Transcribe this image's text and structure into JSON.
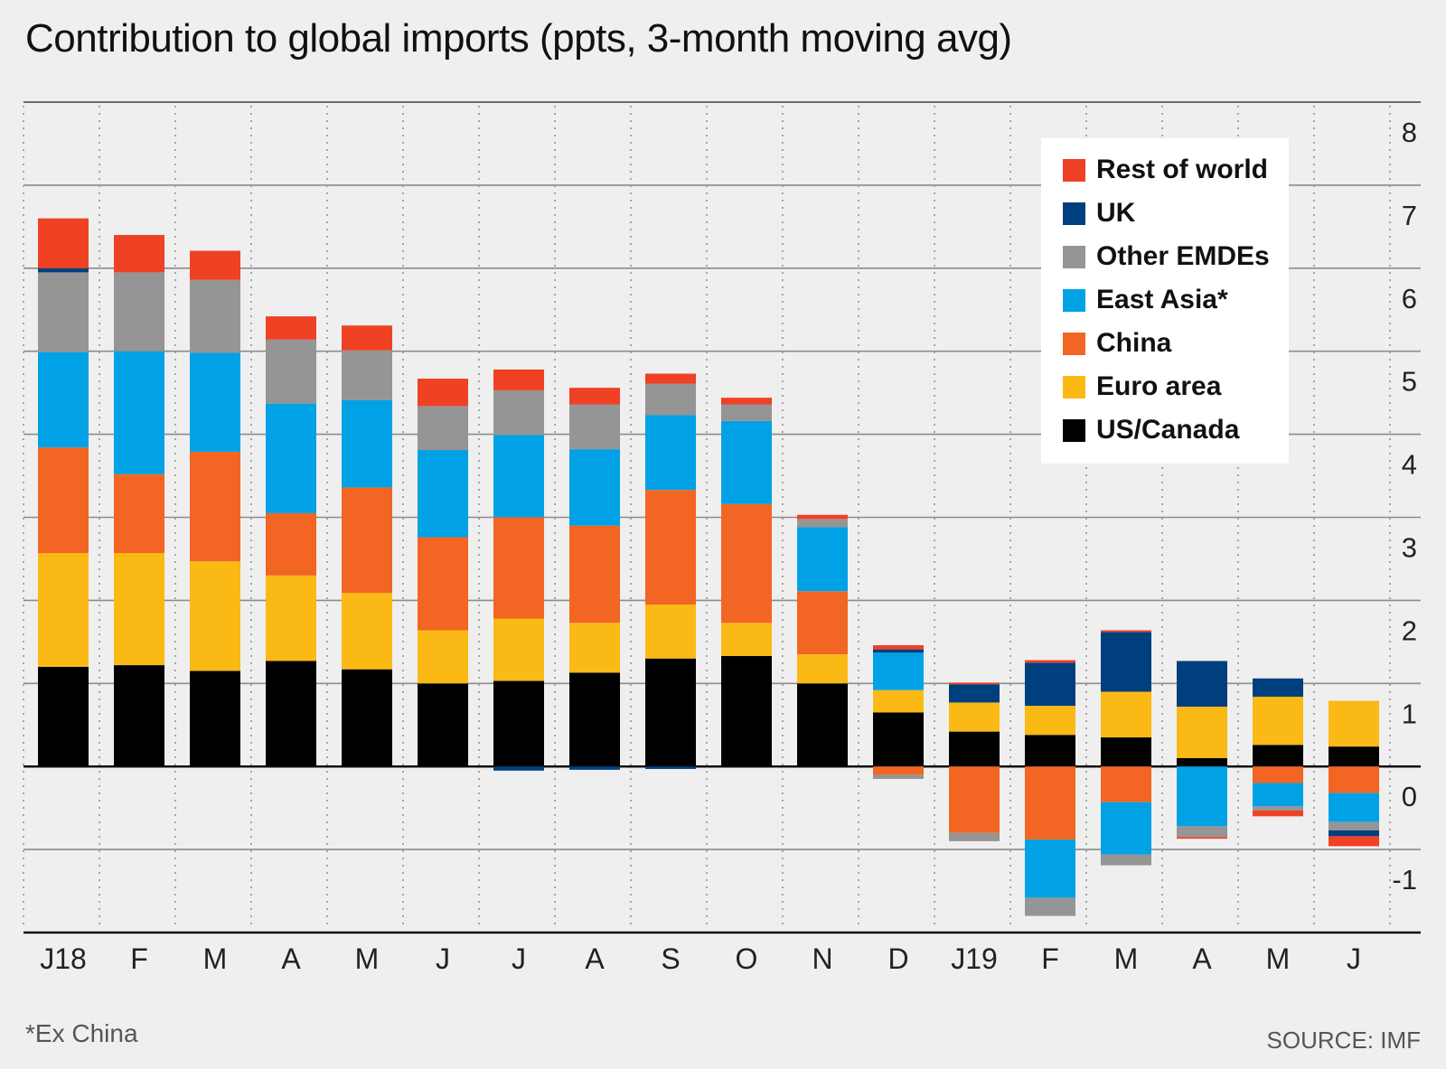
{
  "title": "Contribution to global imports (ppts, 3-month moving avg)",
  "footnote": "*Ex China",
  "source": "SOURCE: IMF",
  "chart_data": {
    "type": "bar",
    "stacked": true,
    "title": "Contribution to global imports (ppts, 3-month moving avg)",
    "categories": [
      "J18",
      "F",
      "M",
      "A",
      "M",
      "J",
      "J",
      "A",
      "S",
      "O",
      "N",
      "D",
      "J19",
      "F",
      "M",
      "A",
      "M",
      "J"
    ],
    "ylim": [
      -2,
      8
    ],
    "yticks": [
      8,
      7,
      6,
      5,
      4,
      3,
      2,
      1,
      0,
      -1
    ],
    "ylabel": "",
    "xlabel": "",
    "grid": true,
    "legend_position": "top-right",
    "series": [
      {
        "name": "US/Canada",
        "color": "#000000",
        "values": [
          1.2,
          1.22,
          1.15,
          1.27,
          1.17,
          1.0,
          1.03,
          1.13,
          1.3,
          1.33,
          1.0,
          0.65,
          0.42,
          0.38,
          0.35,
          0.1,
          0.26,
          0.24
        ]
      },
      {
        "name": "Euro area",
        "color": "#fbb915",
        "values": [
          1.37,
          1.35,
          1.32,
          1.03,
          0.92,
          0.64,
          0.75,
          0.6,
          0.65,
          0.4,
          0.35,
          0.27,
          0.35,
          0.35,
          0.55,
          0.62,
          0.58,
          0.55
        ]
      },
      {
        "name": "China",
        "color": "#f26522",
        "values": [
          1.27,
          0.95,
          1.32,
          0.75,
          1.27,
          1.12,
          1.22,
          1.17,
          1.38,
          1.43,
          0.76,
          -0.1,
          -0.8,
          -0.88,
          -0.43,
          0.0,
          -0.2,
          -0.32
        ]
      },
      {
        "name": "East Asia*",
        "color": "#00a2e5",
        "values": [
          1.15,
          1.48,
          1.19,
          1.32,
          1.05,
          1.05,
          0.99,
          0.92,
          0.9,
          1.0,
          0.77,
          0.45,
          0.0,
          -0.7,
          -0.63,
          -0.72,
          -0.28,
          -0.35
        ]
      },
      {
        "name": "Other EMDEs",
        "color": "#959595",
        "values": [
          0.96,
          0.95,
          0.88,
          0.77,
          0.6,
          0.53,
          0.54,
          0.54,
          0.38,
          0.2,
          0.1,
          -0.05,
          -0.1,
          -0.22,
          -0.13,
          -0.13,
          -0.05,
          -0.1
        ]
      },
      {
        "name": "UK",
        "color": "#003f7d",
        "values": [
          0.05,
          0.0,
          0.0,
          0.0,
          0.0,
          0.0,
          -0.05,
          -0.04,
          -0.03,
          0.0,
          0.0,
          0.04,
          0.22,
          0.52,
          0.72,
          0.55,
          0.22,
          -0.07
        ]
      },
      {
        "name": "Rest of world",
        "color": "#ef4123",
        "values": [
          0.6,
          0.45,
          0.35,
          0.28,
          0.3,
          0.33,
          0.25,
          0.2,
          0.12,
          0.08,
          0.05,
          0.05,
          0.02,
          0.03,
          0.02,
          -0.02,
          -0.07,
          -0.12
        ]
      }
    ]
  },
  "legend_order": [
    "Rest of world",
    "UK",
    "Other EMDEs",
    "East Asia*",
    "China",
    "Euro area",
    "US/Canada"
  ]
}
